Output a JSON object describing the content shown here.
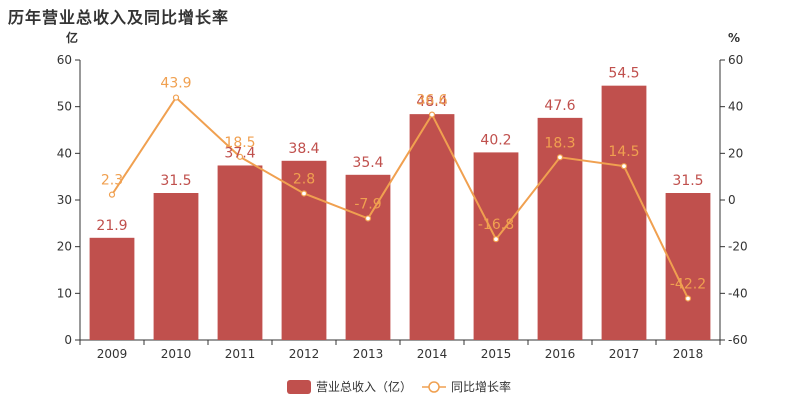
{
  "colors": {
    "bar": "#c0504d",
    "line": "#f0a050",
    "axis": "#333333"
  },
  "chart_data": {
    "type": "bar",
    "title": "历年营业总收入及同比增长率",
    "categories": [
      "2009",
      "2010",
      "2011",
      "2012",
      "2013",
      "2014",
      "2015",
      "2016",
      "2017",
      "2018"
    ],
    "series": [
      {
        "name": "营业总收入（亿）",
        "type": "bar",
        "axis": "left",
        "values": [
          21.9,
          31.5,
          37.4,
          38.4,
          35.4,
          48.4,
          40.2,
          47.6,
          54.5,
          31.5
        ],
        "labels": [
          "21.9",
          "31.5",
          "37.4",
          "38.4",
          "35.4",
          "48.4",
          "40.2",
          "47.6",
          "54.5",
          "31.5"
        ]
      },
      {
        "name": "同比增长率",
        "type": "line",
        "axis": "right",
        "values": [
          2.3,
          43.9,
          18.5,
          2.8,
          -7.9,
          36.6,
          -16.8,
          18.3,
          14.5,
          -42.2
        ],
        "labels": [
          "2.3",
          "43.9",
          "18.5",
          "2.8",
          "-7.9",
          "36.6",
          "-16.8",
          "18.3",
          "14.5",
          "-42.2"
        ]
      }
    ],
    "left_axis": {
      "unit": "亿",
      "ylim": [
        0,
        60
      ],
      "ticks": [
        "0",
        "10",
        "20",
        "30",
        "40",
        "50",
        "60"
      ]
    },
    "right_axis": {
      "unit": "%",
      "ylim": [
        -60,
        60
      ],
      "ticks": [
        "-60",
        "-40",
        "-20",
        "0",
        "20",
        "40",
        "60"
      ]
    },
    "legend_position": "bottom-center",
    "grid": false
  }
}
